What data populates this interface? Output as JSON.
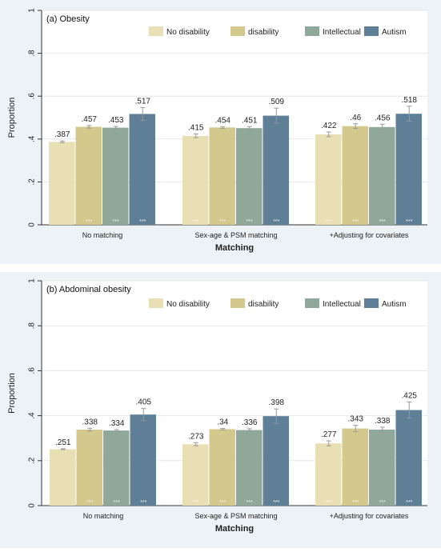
{
  "chart_data": [
    {
      "type": "bar",
      "title": "(a) Obesity",
      "xlabel": "Matching",
      "ylabel": "Proportion",
      "ylim": [
        0,
        1
      ],
      "yticks": [
        0,
        0.2,
        0.4,
        0.6,
        0.8,
        1
      ],
      "ytick_labels": [
        "0",
        ".2",
        ".4",
        ".6",
        ".8",
        "1"
      ],
      "grid": true,
      "legend_position": "top-right",
      "categories": [
        "No matching",
        "Sex-age & PSM matching",
        "+Adjusting for covariates"
      ],
      "significance_mark": "***",
      "series": [
        {
          "name": "No disability",
          "color": "#e8e0b4",
          "values": [
            0.387,
            0.415,
            0.422
          ],
          "labels": [
            ".387",
            ".415",
            ".422"
          ],
          "ci": [
            0.004,
            0.009,
            0.011
          ],
          "sig": [
            false,
            true,
            true
          ]
        },
        {
          "name": "disability",
          "color": "#d4c98c",
          "values": [
            0.457,
            0.454,
            0.46
          ],
          "labels": [
            ".457",
            ".454",
            ".46"
          ],
          "ci": [
            0.006,
            0.004,
            0.011
          ],
          "sig": [
            true,
            true,
            true
          ]
        },
        {
          "name": "Intellectual",
          "color": "#8fa89a",
          "values": [
            0.453,
            0.451,
            0.456
          ],
          "labels": [
            ".453",
            ".451",
            ".456"
          ],
          "ci": [
            0.006,
            0.007,
            0.013
          ],
          "sig": [
            true,
            true,
            true
          ]
        },
        {
          "name": "Autism",
          "color": "#5f7f97",
          "values": [
            0.517,
            0.509,
            0.518
          ],
          "labels": [
            ".517",
            ".509",
            ".518"
          ],
          "ci": [
            0.03,
            0.035,
            0.035
          ],
          "sig": [
            true,
            true,
            true
          ]
        }
      ]
    },
    {
      "type": "bar",
      "title": "(b) Abdominal obesity",
      "xlabel": "Matching",
      "ylabel": "Proportion",
      "ylim": [
        0,
        1
      ],
      "yticks": [
        0,
        0.2,
        0.4,
        0.6,
        0.8,
        1
      ],
      "ytick_labels": [
        "0",
        ".2",
        ".4",
        ".6",
        ".8",
        "1"
      ],
      "grid": true,
      "legend_position": "top-right",
      "categories": [
        "No matching",
        "Sex-age & PSM matching",
        "+Adjusting for covariates"
      ],
      "significance_mark": "***",
      "series": [
        {
          "name": "No disability",
          "color": "#e8e0b4",
          "values": [
            0.251,
            0.273,
            0.277
          ],
          "labels": [
            ".251",
            ".273",
            ".277"
          ],
          "ci": [
            0.002,
            0.007,
            0.011
          ],
          "sig": [
            false,
            true,
            true
          ]
        },
        {
          "name": "disability",
          "color": "#d4c98c",
          "values": [
            0.338,
            0.34,
            0.343
          ],
          "labels": [
            ".338",
            ".34",
            ".343"
          ],
          "ci": [
            0.006,
            0.003,
            0.014
          ],
          "sig": [
            true,
            true,
            true
          ]
        },
        {
          "name": "Intellectual",
          "color": "#8fa89a",
          "values": [
            0.334,
            0.336,
            0.338
          ],
          "labels": [
            ".334",
            ".336",
            ".338"
          ],
          "ci": [
            0.004,
            0.006,
            0.011
          ],
          "sig": [
            true,
            true,
            true
          ]
        },
        {
          "name": "Autism",
          "color": "#5f7f97",
          "values": [
            0.405,
            0.398,
            0.425
          ],
          "labels": [
            ".405",
            ".398",
            ".425"
          ],
          "ci": [
            0.027,
            0.032,
            0.036
          ],
          "sig": [
            true,
            true,
            true
          ]
        }
      ]
    }
  ]
}
